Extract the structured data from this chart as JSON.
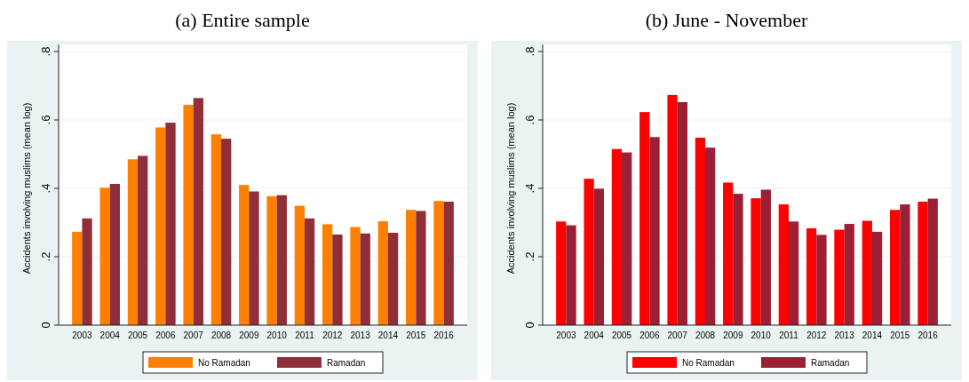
{
  "chart_data": [
    {
      "type": "bar",
      "title": "(a) Entire sample",
      "ylabel": "Accidents involving muslims (mean log)",
      "categories": [
        "2003",
        "2004",
        "2005",
        "2006",
        "2007",
        "2008",
        "2009",
        "2010",
        "2011",
        "2012",
        "2013",
        "2014",
        "2015",
        "2016"
      ],
      "series": [
        {
          "name": "No Ramadan",
          "color": "#ff7f00",
          "values": [
            0.273,
            0.402,
            0.485,
            0.578,
            0.644,
            0.558,
            0.41,
            0.377,
            0.349,
            0.295,
            0.287,
            0.304,
            0.337,
            0.363
          ]
        },
        {
          "name": "Ramadan",
          "color": "#8f2f3a",
          "values": [
            0.312,
            0.413,
            0.495,
            0.592,
            0.664,
            0.545,
            0.391,
            0.38,
            0.312,
            0.265,
            0.268,
            0.27,
            0.334,
            0.361
          ]
        }
      ],
      "ylim": [
        0,
        0.8
      ],
      "yticks": [
        {
          "value": 0,
          "label": "0"
        },
        {
          "value": 0.2,
          "label": ".2"
        },
        {
          "value": 0.4,
          "label": ".4"
        },
        {
          "value": 0.6,
          "label": ".6"
        },
        {
          "value": 0.8,
          "label": ".8"
        }
      ],
      "grid": "y",
      "legend": "bottom"
    },
    {
      "type": "bar",
      "title": "(b) June - November",
      "ylabel": "Accidents involving muslims (mean log)",
      "categories": [
        "2003",
        "2004",
        "2005",
        "2006",
        "2007",
        "2008",
        "2009",
        "2010",
        "2011",
        "2012",
        "2013",
        "2014",
        "2015",
        "2016"
      ],
      "series": [
        {
          "name": "No Ramadan",
          "color": "#ff0000",
          "values": [
            0.303,
            0.428,
            0.515,
            0.623,
            0.673,
            0.548,
            0.417,
            0.371,
            0.353,
            0.283,
            0.279,
            0.305,
            0.337,
            0.361
          ]
        },
        {
          "name": "Ramadan",
          "color": "#9b1f35",
          "values": [
            0.292,
            0.399,
            0.505,
            0.55,
            0.652,
            0.519,
            0.384,
            0.396,
            0.303,
            0.264,
            0.296,
            0.273,
            0.353,
            0.37
          ]
        }
      ],
      "ylim": [
        0,
        0.8
      ],
      "yticks": [
        {
          "value": 0,
          "label": "0"
        },
        {
          "value": 0.2,
          "label": ".2"
        },
        {
          "value": 0.4,
          "label": ".4"
        },
        {
          "value": 0.6,
          "label": ".6"
        },
        {
          "value": 0.8,
          "label": ".8"
        }
      ],
      "grid": "y",
      "legend": "bottom"
    }
  ]
}
